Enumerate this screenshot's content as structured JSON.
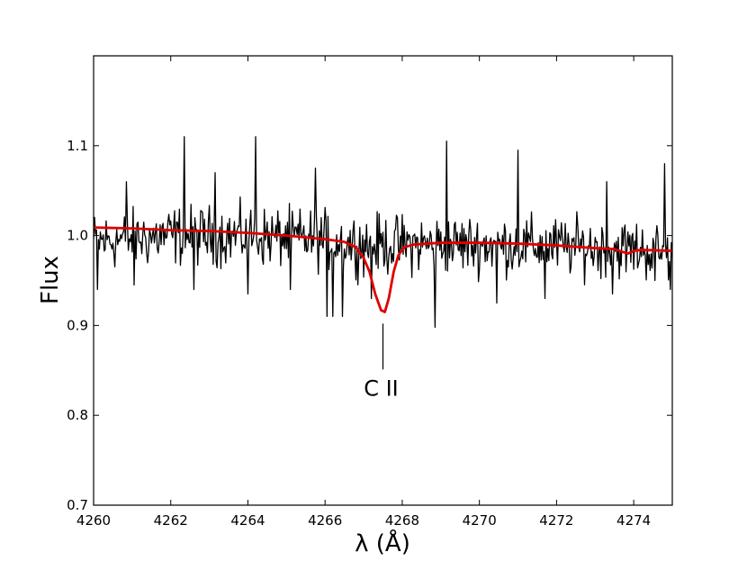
{
  "chart_data": {
    "type": "line",
    "xlabel": "λ (Å)",
    "ylabel": "Flux",
    "xlim": [
      4260,
      4275
    ],
    "ylim": [
      0.7,
      1.2
    ],
    "xticks": [
      "4260",
      "4262",
      "4264",
      "4266",
      "4268",
      "4270",
      "4272",
      "4274"
    ],
    "yticks": [
      "0.7",
      "0.8",
      "0.9",
      "1.0",
      "1.1"
    ],
    "grid": false,
    "legend": "none",
    "annotations": [
      {
        "text": "C II",
        "x": 4267.5,
        "line_from_flux": 0.902,
        "line_to_flux": 0.851
      }
    ],
    "series": [
      {
        "color": "#000000",
        "style": "noisy observed spectrum",
        "x_start": 4260.0,
        "x_step": 0.025,
        "num_points": 601,
        "continuum_anchors": [
          [
            4260.0,
            0.993
          ],
          [
            4262.0,
            1.0
          ],
          [
            4264.0,
            1.0
          ],
          [
            4266.0,
            0.995
          ],
          [
            4267.0,
            0.99
          ],
          [
            4268.0,
            0.99
          ],
          [
            4270.0,
            0.99
          ],
          [
            4272.0,
            0.988
          ],
          [
            4274.0,
            0.985
          ],
          [
            4275.0,
            0.98
          ]
        ],
        "noise_amplitude": 0.03,
        "spikes": [
          [
            4260.1,
            0.94
          ],
          [
            4260.85,
            1.06
          ],
          [
            4261.05,
            0.945
          ],
          [
            4262.35,
            1.11
          ],
          [
            4262.6,
            0.94
          ],
          [
            4263.15,
            1.07
          ],
          [
            4264.0,
            0.935
          ],
          [
            4264.2,
            1.11
          ],
          [
            4265.1,
            0.94
          ],
          [
            4265.75,
            1.075
          ],
          [
            4266.05,
            0.91
          ],
          [
            4266.2,
            0.91
          ],
          [
            4266.45,
            0.91
          ],
          [
            4267.2,
            0.93
          ],
          [
            4268.85,
            0.898
          ],
          [
            4269.15,
            1.105
          ],
          [
            4270.45,
            0.925
          ],
          [
            4271.0,
            1.095
          ],
          [
            4271.7,
            0.93
          ],
          [
            4273.3,
            1.06
          ],
          [
            4273.45,
            0.935
          ],
          [
            4274.55,
            0.95
          ],
          [
            4274.8,
            1.08
          ],
          [
            4274.95,
            0.94
          ]
        ]
      },
      {
        "color": "#e00000",
        "style": "model fit",
        "points": [
          [
            4260.0,
            1.009
          ],
          [
            4261.0,
            1.008
          ],
          [
            4262.0,
            1.006
          ],
          [
            4263.0,
            1.005
          ],
          [
            4264.0,
            1.003
          ],
          [
            4265.0,
            1.0
          ],
          [
            4265.5,
            0.998
          ],
          [
            4266.0,
            0.996
          ],
          [
            4266.5,
            0.993
          ],
          [
            4266.8,
            0.987
          ],
          [
            4267.0,
            0.975
          ],
          [
            4267.15,
            0.96
          ],
          [
            4267.3,
            0.935
          ],
          [
            4267.45,
            0.917
          ],
          [
            4267.55,
            0.915
          ],
          [
            4267.65,
            0.93
          ],
          [
            4267.78,
            0.96
          ],
          [
            4267.9,
            0.978
          ],
          [
            4268.05,
            0.987
          ],
          [
            4268.3,
            0.99
          ],
          [
            4269.0,
            0.992
          ],
          [
            4270.0,
            0.992
          ],
          [
            4271.0,
            0.991
          ],
          [
            4272.0,
            0.989
          ],
          [
            4273.0,
            0.986
          ],
          [
            4273.5,
            0.985
          ],
          [
            4273.7,
            0.982
          ],
          [
            4273.85,
            0.98
          ],
          [
            4274.0,
            0.983
          ],
          [
            4274.2,
            0.984
          ],
          [
            4275.0,
            0.983
          ]
        ]
      }
    ]
  }
}
